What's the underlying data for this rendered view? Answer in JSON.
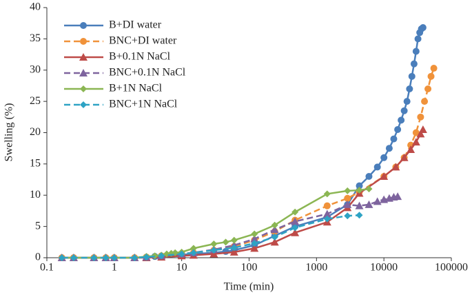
{
  "chart_data": {
    "type": "scatter",
    "x_label": "Time (min)",
    "y_label": "Swelling (%)",
    "xscale": "log",
    "xlim": [
      0.1,
      100000
    ],
    "xticks": [
      0.1,
      1,
      10,
      100,
      1000,
      10000,
      100000
    ],
    "ylim": [
      0,
      40
    ],
    "yticks": [
      0,
      5,
      10,
      15,
      20,
      25,
      30,
      35,
      40
    ],
    "legend": "upper-left",
    "series": [
      {
        "name": "B+DI water",
        "color": "#4a7ebb",
        "marker": "circle",
        "dashed": false,
        "x": [
          0.167,
          0.25,
          0.5,
          0.75,
          1,
          2,
          3,
          4,
          5,
          10,
          15,
          30,
          45,
          60,
          120,
          240,
          480,
          1440,
          2880,
          4320,
          6000,
          8000,
          10000,
          12000,
          14000,
          16000,
          18000,
          20000,
          22000,
          24000,
          26000,
          28000,
          30000,
          32000,
          34000,
          36000,
          38000
        ],
        "values": [
          0,
          0,
          0,
          0,
          0,
          0,
          0.1,
          0.2,
          0.3,
          0.5,
          0.6,
          0.8,
          1.0,
          1.2,
          2.0,
          3.5,
          5.0,
          6.5,
          8.5,
          11.5,
          13.0,
          14.5,
          16.0,
          17.5,
          19.0,
          20.5,
          22,
          23.5,
          25,
          27,
          29,
          31,
          33,
          35,
          36,
          36.6,
          36.8
        ]
      },
      {
        "name": "BNC+DI water",
        "color": "#f0923a",
        "marker": "circle",
        "dashed": true,
        "x": [
          0.167,
          0.25,
          0.5,
          0.75,
          1,
          2,
          3,
          5,
          10,
          15,
          30,
          60,
          120,
          240,
          480,
          1440,
          2880,
          4320,
          10000,
          15000,
          20000,
          25000,
          30000,
          35000,
          40000,
          45000,
          50000,
          55000
        ],
        "values": [
          0,
          0,
          0,
          0,
          0,
          0,
          0.1,
          0.3,
          0.6,
          0.8,
          1.2,
          1.8,
          2.8,
          4.2,
          6.0,
          8.3,
          9.5,
          10.5,
          13.0,
          14.5,
          16.0,
          18.0,
          20.0,
          22.5,
          25.0,
          27.0,
          29.0,
          30.3
        ]
      },
      {
        "name": "B+0.1N NaCl",
        "color": "#be4b48",
        "marker": "triangle",
        "dashed": false,
        "x": [
          0.167,
          0.25,
          0.5,
          0.75,
          1,
          2,
          3,
          5,
          10,
          15,
          30,
          60,
          120,
          240,
          480,
          1440,
          2880,
          4320,
          10000,
          15000,
          20000,
          25000,
          30000,
          35000,
          38000
        ],
        "values": [
          0,
          0,
          0,
          0,
          0,
          0,
          0,
          0.1,
          0.3,
          0.4,
          0.6,
          0.9,
          1.5,
          2.5,
          4.0,
          5.7,
          8.0,
          10.3,
          13.0,
          14.5,
          16.0,
          17.3,
          18.5,
          19.8,
          20.5
        ]
      },
      {
        "name": "BNC+0.1N NaCl",
        "color": "#7e649e",
        "marker": "triangle",
        "dashed": true,
        "x": [
          0.167,
          0.25,
          0.5,
          0.75,
          1,
          2,
          3,
          5,
          10,
          15,
          30,
          60,
          120,
          240,
          480,
          1440,
          2880,
          4320,
          6000,
          8000,
          10000,
          12000,
          14000,
          16000
        ],
        "values": [
          0,
          0,
          0,
          0,
          0,
          0,
          0.1,
          0.3,
          0.6,
          0.8,
          1.3,
          2.0,
          3.0,
          4.5,
          5.8,
          7.0,
          8.5,
          8.3,
          8.5,
          9.0,
          9.3,
          9.5,
          9.7,
          9.8
        ]
      },
      {
        "name": "B+1N NaCl",
        "color": "#8bb653",
        "marker": "diamond",
        "dashed": false,
        "x": [
          0.167,
          0.25,
          0.5,
          0.75,
          1,
          2,
          3,
          4,
          5,
          6,
          7,
          8,
          10,
          15,
          30,
          45,
          60,
          120,
          240,
          480,
          1440,
          2880,
          4320,
          6000
        ],
        "values": [
          0,
          0,
          0,
          0,
          0,
          0,
          0.2,
          0.3,
          0.4,
          0.6,
          0.7,
          0.8,
          0.9,
          1.5,
          2.2,
          2.5,
          2.8,
          3.8,
          5.2,
          7.3,
          10.2,
          10.7,
          10.8,
          11.0
        ]
      },
      {
        "name": "BNC+1N NaCl",
        "color": "#2ea3c4",
        "marker": "diamond",
        "dashed": true,
        "x": [
          0.167,
          0.25,
          0.5,
          0.75,
          1,
          2,
          3,
          5,
          10,
          15,
          30,
          60,
          120,
          240,
          480,
          1440,
          2880,
          4320
        ],
        "values": [
          0,
          0,
          0,
          0,
          0,
          0,
          0.1,
          0.3,
          0.6,
          0.8,
          1.2,
          1.6,
          2.3,
          3.3,
          4.8,
          6.2,
          6.7,
          6.8
        ]
      }
    ]
  }
}
